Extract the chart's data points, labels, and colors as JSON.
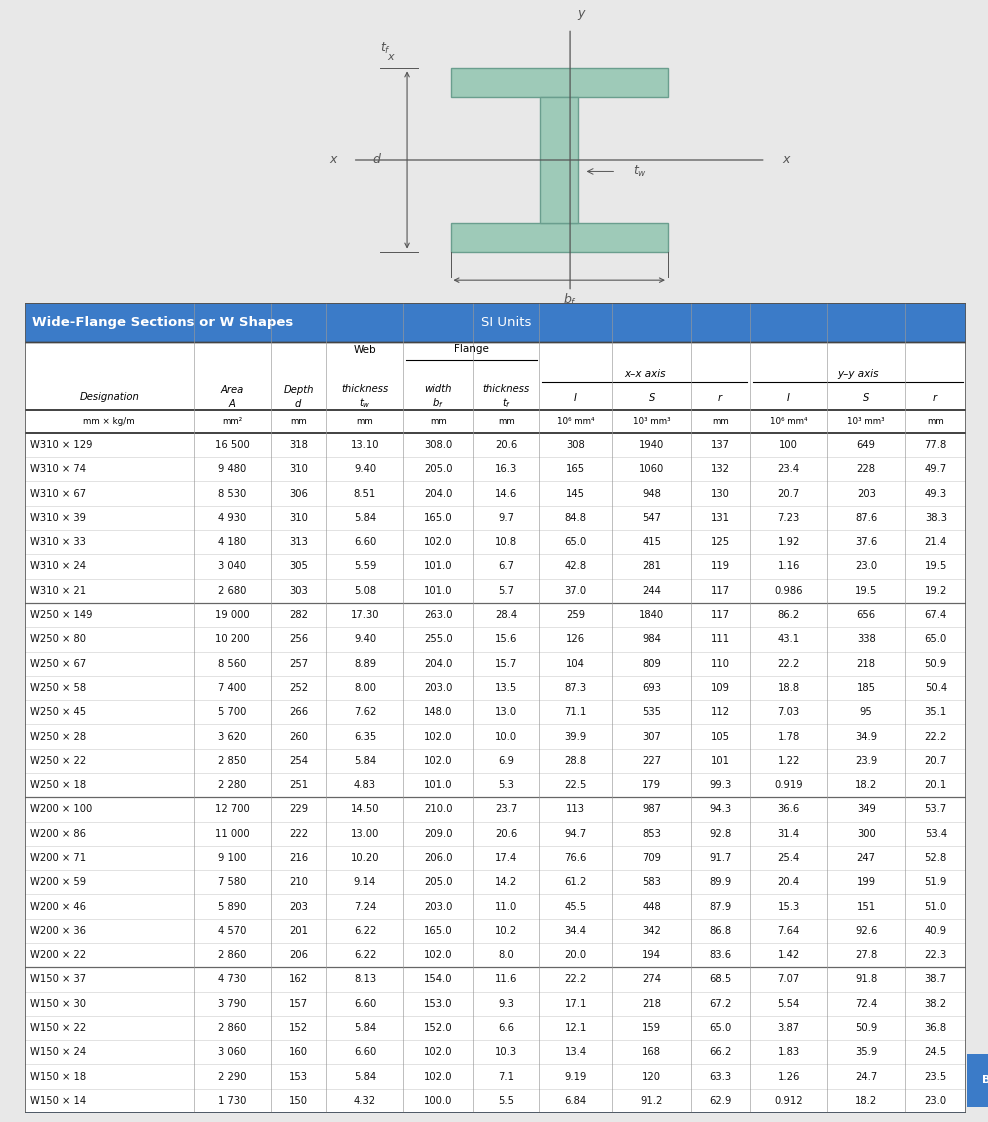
{
  "title_left": "Wide-Flange Sections or W Shapes",
  "title_right": "SI Units",
  "header_bg": "#3B7BC8",
  "rows": [
    [
      "W310 × 129",
      "16 500",
      "318",
      "13.10",
      "308.0",
      "20.6",
      "308",
      "1940",
      "137",
      "100",
      "649",
      "77.8"
    ],
    [
      "W310 × 74",
      "9 480",
      "310",
      "9.40",
      "205.0",
      "16.3",
      "165",
      "1060",
      "132",
      "23.4",
      "228",
      "49.7"
    ],
    [
      "W310 × 67",
      "8 530",
      "306",
      "8.51",
      "204.0",
      "14.6",
      "145",
      "948",
      "130",
      "20.7",
      "203",
      "49.3"
    ],
    [
      "W310 × 39",
      "4 930",
      "310",
      "5.84",
      "165.0",
      "9.7",
      "84.8",
      "547",
      "131",
      "7.23",
      "87.6",
      "38.3"
    ],
    [
      "W310 × 33",
      "4 180",
      "313",
      "6.60",
      "102.0",
      "10.8",
      "65.0",
      "415",
      "125",
      "1.92",
      "37.6",
      "21.4"
    ],
    [
      "W310 × 24",
      "3 040",
      "305",
      "5.59",
      "101.0",
      "6.7",
      "42.8",
      "281",
      "119",
      "1.16",
      "23.0",
      "19.5"
    ],
    [
      "W310 × 21",
      "2 680",
      "303",
      "5.08",
      "101.0",
      "5.7",
      "37.0",
      "244",
      "117",
      "0.986",
      "19.5",
      "19.2"
    ],
    [
      "W250 × 149",
      "19 000",
      "282",
      "17.30",
      "263.0",
      "28.4",
      "259",
      "1840",
      "117",
      "86.2",
      "656",
      "67.4"
    ],
    [
      "W250 × 80",
      "10 200",
      "256",
      "9.40",
      "255.0",
      "15.6",
      "126",
      "984",
      "111",
      "43.1",
      "338",
      "65.0"
    ],
    [
      "W250 × 67",
      "8 560",
      "257",
      "8.89",
      "204.0",
      "15.7",
      "104",
      "809",
      "110",
      "22.2",
      "218",
      "50.9"
    ],
    [
      "W250 × 58",
      "7 400",
      "252",
      "8.00",
      "203.0",
      "13.5",
      "87.3",
      "693",
      "109",
      "18.8",
      "185",
      "50.4"
    ],
    [
      "W250 × 45",
      "5 700",
      "266",
      "7.62",
      "148.0",
      "13.0",
      "71.1",
      "535",
      "112",
      "7.03",
      "95",
      "35.1"
    ],
    [
      "W250 × 28",
      "3 620",
      "260",
      "6.35",
      "102.0",
      "10.0",
      "39.9",
      "307",
      "105",
      "1.78",
      "34.9",
      "22.2"
    ],
    [
      "W250 × 22",
      "2 850",
      "254",
      "5.84",
      "102.0",
      "6.9",
      "28.8",
      "227",
      "101",
      "1.22",
      "23.9",
      "20.7"
    ],
    [
      "W250 × 18",
      "2 280",
      "251",
      "4.83",
      "101.0",
      "5.3",
      "22.5",
      "179",
      "99.3",
      "0.919",
      "18.2",
      "20.1"
    ],
    [
      "W200 × 100",
      "12 700",
      "229",
      "14.50",
      "210.0",
      "23.7",
      "113",
      "987",
      "94.3",
      "36.6",
      "349",
      "53.7"
    ],
    [
      "W200 × 86",
      "11 000",
      "222",
      "13.00",
      "209.0",
      "20.6",
      "94.7",
      "853",
      "92.8",
      "31.4",
      "300",
      "53.4"
    ],
    [
      "W200 × 71",
      "9 100",
      "216",
      "10.20",
      "206.0",
      "17.4",
      "76.6",
      "709",
      "91.7",
      "25.4",
      "247",
      "52.8"
    ],
    [
      "W200 × 59",
      "7 580",
      "210",
      "9.14",
      "205.0",
      "14.2",
      "61.2",
      "583",
      "89.9",
      "20.4",
      "199",
      "51.9"
    ],
    [
      "W200 × 46",
      "5 890",
      "203",
      "7.24",
      "203.0",
      "11.0",
      "45.5",
      "448",
      "87.9",
      "15.3",
      "151",
      "51.0"
    ],
    [
      "W200 × 36",
      "4 570",
      "201",
      "6.22",
      "165.0",
      "10.2",
      "34.4",
      "342",
      "86.8",
      "7.64",
      "92.6",
      "40.9"
    ],
    [
      "W200 × 22",
      "2 860",
      "206",
      "6.22",
      "102.0",
      "8.0",
      "20.0",
      "194",
      "83.6",
      "1.42",
      "27.8",
      "22.3"
    ],
    [
      "W150 × 37",
      "4 730",
      "162",
      "8.13",
      "154.0",
      "11.6",
      "22.2",
      "274",
      "68.5",
      "7.07",
      "91.8",
      "38.7"
    ],
    [
      "W150 × 30",
      "3 790",
      "157",
      "6.60",
      "153.0",
      "9.3",
      "17.1",
      "218",
      "67.2",
      "5.54",
      "72.4",
      "38.2"
    ],
    [
      "W150 × 22",
      "2 860",
      "152",
      "5.84",
      "152.0",
      "6.6",
      "12.1",
      "159",
      "65.0",
      "3.87",
      "50.9",
      "36.8"
    ],
    [
      "W150 × 24",
      "3 060",
      "160",
      "6.60",
      "102.0",
      "10.3",
      "13.4",
      "168",
      "66.2",
      "1.83",
      "35.9",
      "24.5"
    ],
    [
      "W150 × 18",
      "2 290",
      "153",
      "5.84",
      "102.0",
      "7.1",
      "9.19",
      "120",
      "63.3",
      "1.26",
      "24.7",
      "23.5"
    ],
    [
      "W150 × 14",
      "1 730",
      "150",
      "4.32",
      "100.0",
      "5.5",
      "6.84",
      "91.2",
      "62.9",
      "0.912",
      "18.2",
      "23.0"
    ]
  ],
  "group_after": [
    6,
    14,
    21
  ],
  "fill_color": "#9ECAB8",
  "edge_color": "#6A9E8E"
}
